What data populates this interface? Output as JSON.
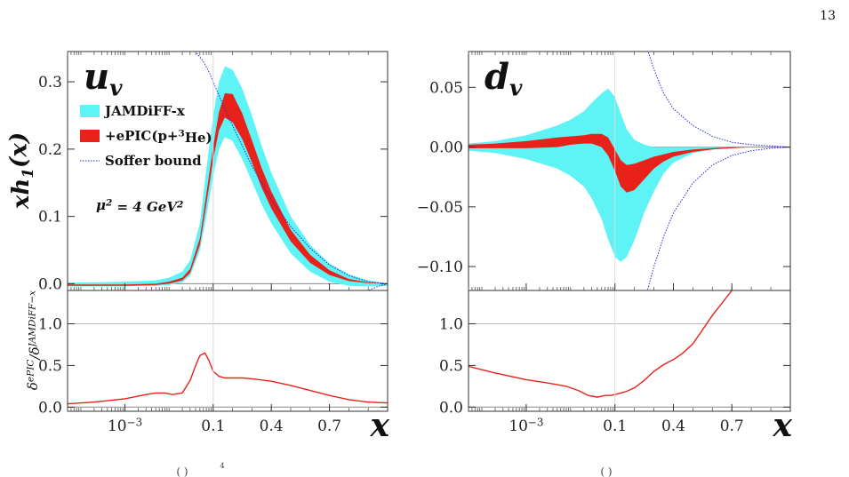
{
  "page_number": "13",
  "footer_fragments": [
    "( )",
    "4",
    "( )"
  ],
  "chart_data": [
    {
      "type": "area",
      "panel": "u_v",
      "title": "u",
      "title_sub": "v",
      "ylabel": "xh",
      "ylabel_sub": "1",
      "ylabel_suffix": "(x)",
      "xlabel": "x",
      "xscale": "log-to-linear",
      "xlim": [
        5e-05,
        1.0
      ],
      "ylim": [
        -0.01,
        0.345
      ],
      "x_ticks": [
        {
          "value": 0.001,
          "label": "10",
          "exp": "−3"
        },
        {
          "value": 0.1,
          "label": "0.1"
        },
        {
          "value": 0.4,
          "label": "0.4"
        },
        {
          "value": 0.7,
          "label": "0.7"
        }
      ],
      "y_ticks": [
        {
          "value": 0.0,
          "label": "0.0"
        },
        {
          "value": 0.1,
          "label": "0.1"
        },
        {
          "value": 0.2,
          "label": "0.2"
        },
        {
          "value": 0.3,
          "label": "0.3"
        }
      ],
      "legend": {
        "placement": "top-left",
        "items": [
          {
            "label": "JAMDiFF-x",
            "color": "#5ef3f5",
            "kind": "band"
          },
          {
            "label": "+ePIC(p+",
            "sup": "3",
            "label_tail": "He)",
            "color": "#e8221b",
            "kind": "band"
          },
          {
            "label": "Soffer bound",
            "color": "#2a2ad8",
            "kind": "dotted"
          }
        ]
      },
      "scale_annotation": {
        "lhs": "μ",
        "lhs_sup": "2",
        "mid": " = 4 GeV",
        "sup": "2"
      },
      "x": [
        5e-05,
        0.0002,
        0.001,
        0.005,
        0.01,
        0.02,
        0.03,
        0.05,
        0.07,
        0.1,
        0.13,
        0.16,
        0.2,
        0.25,
        0.3,
        0.35,
        0.4,
        0.5,
        0.6,
        0.7,
        0.8,
        0.9,
        1.0
      ],
      "series": [
        {
          "name": "JAMDiFF-x",
          "upper": [
            0.002,
            0.002,
            0.003,
            0.005,
            0.009,
            0.018,
            0.035,
            0.09,
            0.17,
            0.25,
            0.3,
            0.323,
            0.318,
            0.29,
            0.25,
            0.205,
            0.165,
            0.1,
            0.058,
            0.03,
            0.014,
            0.005,
            0.0
          ],
          "lower": [
            -0.004,
            -0.004,
            -0.004,
            -0.003,
            -0.002,
            0.002,
            0.012,
            0.05,
            0.1,
            0.16,
            0.2,
            0.218,
            0.212,
            0.185,
            0.152,
            0.118,
            0.09,
            0.045,
            0.018,
            0.003,
            -0.003,
            -0.004,
            -0.003
          ]
        },
        {
          "name": "+ePIC(p+3He)",
          "upper": [
            -0.001,
            -0.001,
            -0.001,
            0.0,
            0.003,
            0.009,
            0.022,
            0.068,
            0.133,
            0.204,
            0.255,
            0.283,
            0.282,
            0.253,
            0.213,
            0.172,
            0.137,
            0.08,
            0.043,
            0.02,
            0.007,
            0.002,
            0.0
          ],
          "lower": [
            -0.003,
            -0.003,
            -0.003,
            -0.002,
            0.0,
            0.005,
            0.016,
            0.058,
            0.118,
            0.185,
            0.228,
            0.247,
            0.24,
            0.215,
            0.18,
            0.143,
            0.112,
            0.063,
            0.031,
            0.013,
            0.004,
            0.001,
            0.0
          ]
        }
      ],
      "soffer_upper": {
        "x": [
          0.02,
          0.04,
          0.06,
          0.08,
          0.1,
          0.13,
          0.16,
          0.2,
          0.25,
          0.3,
          0.4,
          0.5,
          0.6,
          0.7,
          0.8,
          0.9,
          1.0
        ],
        "y": [
          0.36,
          0.345,
          0.33,
          0.315,
          0.3,
          0.28,
          0.26,
          0.235,
          0.205,
          0.175,
          0.125,
          0.085,
          0.053,
          0.028,
          0.012,
          0.003,
          0.0
        ]
      },
      "soffer_lower": {
        "x": [
          0.8,
          0.85,
          0.9,
          0.95,
          1.0
        ],
        "y": [
          -0.02,
          -0.015,
          -0.01,
          -0.004,
          0.0
        ]
      },
      "ratio": {
        "ylabel": "δ",
        "ylabel_sup1": "ePIC",
        "ylabel_mid": "/δ",
        "ylabel_sup2": "JAMDiFF−x",
        "ylim": [
          -0.05,
          1.4
        ],
        "y_ticks": [
          {
            "value": 0.0,
            "label": "0.0"
          },
          {
            "value": 0.5,
            "label": "0.5"
          },
          {
            "value": 1.0,
            "label": "1.0"
          }
        ],
        "x": [
          5e-05,
          0.0002,
          0.001,
          0.003,
          0.005,
          0.008,
          0.012,
          0.02,
          0.03,
          0.04,
          0.05,
          0.065,
          0.08,
          0.1,
          0.13,
          0.16,
          0.2,
          0.25,
          0.3,
          0.4,
          0.5,
          0.6,
          0.7,
          0.8,
          0.9,
          1.0
        ],
        "values": [
          0.04,
          0.06,
          0.1,
          0.15,
          0.17,
          0.17,
          0.15,
          0.17,
          0.32,
          0.5,
          0.62,
          0.65,
          0.56,
          0.43,
          0.37,
          0.35,
          0.35,
          0.35,
          0.34,
          0.31,
          0.26,
          0.2,
          0.14,
          0.09,
          0.06,
          0.05
        ]
      },
      "colors": {
        "outer": "#5ef3f5",
        "inner": "#e8221b",
        "soffer": "#2a2ad8",
        "ratio": "#e8221b"
      }
    },
    {
      "type": "area",
      "panel": "d_v",
      "title": "d",
      "title_sub": "v",
      "xlabel": "x",
      "xscale": "log-to-linear",
      "xlim": [
        5e-05,
        1.0
      ],
      "ylim": [
        -0.12,
        0.08
      ],
      "x_ticks": [
        {
          "value": 0.001,
          "label": "10",
          "exp": "−3"
        },
        {
          "value": 0.1,
          "label": "0.1"
        },
        {
          "value": 0.4,
          "label": "0.4"
        },
        {
          "value": 0.7,
          "label": "0.7"
        }
      ],
      "y_ticks": [
        {
          "value": -0.1,
          "label": "−0.10"
        },
        {
          "value": -0.05,
          "label": "−0.05"
        },
        {
          "value": 0.0,
          "label": "0.00"
        },
        {
          "value": 0.05,
          "label": "0.05"
        }
      ],
      "x": [
        5e-05,
        0.0002,
        0.001,
        0.005,
        0.01,
        0.02,
        0.03,
        0.05,
        0.07,
        0.1,
        0.13,
        0.16,
        0.2,
        0.25,
        0.3,
        0.35,
        0.4,
        0.5,
        0.6,
        0.7,
        0.8,
        0.9,
        1.0
      ],
      "series": [
        {
          "name": "JAMDiFF-x",
          "upper": [
            0.003,
            0.005,
            0.01,
            0.018,
            0.023,
            0.03,
            0.037,
            0.045,
            0.049,
            0.042,
            0.028,
            0.015,
            0.006,
            0.002,
            0.0,
            0.0,
            0.0,
            0.0,
            0.0,
            0.0,
            0.0,
            0.0,
            0.0
          ],
          "lower": [
            -0.003,
            -0.005,
            -0.01,
            -0.018,
            -0.024,
            -0.033,
            -0.043,
            -0.06,
            -0.077,
            -0.092,
            -0.096,
            -0.092,
            -0.078,
            -0.055,
            -0.037,
            -0.022,
            -0.013,
            -0.005,
            -0.002,
            -0.001,
            0.0,
            0.0,
            0.0
          ]
        },
        {
          "name": "+ePIC(p+3He)",
          "upper": [
            0.002,
            0.003,
            0.005,
            0.008,
            0.009,
            0.01,
            0.011,
            0.011,
            0.008,
            -0.002,
            -0.011,
            -0.015,
            -0.014,
            -0.011,
            -0.008,
            -0.006,
            -0.004,
            -0.002,
            -0.001,
            0.0,
            0.0,
            0.0,
            0.0
          ]
        },
        {
          "name": "+ePIC(p+3He) lower",
          "lower": [
            -0.001,
            -0.001,
            -0.001,
            0.0,
            0.002,
            0.003,
            0.003,
            0.0,
            -0.007,
            -0.02,
            -0.033,
            -0.038,
            -0.036,
            -0.027,
            -0.018,
            -0.012,
            -0.008,
            -0.004,
            -0.002,
            -0.001,
            0.0,
            0.0,
            0.0
          ]
        }
      ],
      "soffer_upper": {
        "x": [
          0.25,
          0.3,
          0.35,
          0.4,
          0.5,
          0.6,
          0.7,
          0.8,
          0.9,
          1.0
        ],
        "y": [
          0.09,
          0.065,
          0.045,
          0.032,
          0.018,
          0.009,
          0.004,
          0.002,
          0.001,
          0.0
        ]
      },
      "soffer_lower": {
        "x": [
          0.25,
          0.3,
          0.35,
          0.4,
          0.5,
          0.6,
          0.7,
          0.8,
          0.9,
          1.0
        ],
        "y": [
          -0.13,
          -0.1,
          -0.075,
          -0.055,
          -0.03,
          -0.015,
          -0.007,
          -0.003,
          -0.001,
          0.0
        ]
      },
      "ratio": {
        "ylim": [
          -0.05,
          1.4
        ],
        "y_ticks": [
          {
            "value": 0.0,
            "label": "0.0"
          },
          {
            "value": 0.5,
            "label": "0.5"
          },
          {
            "value": 1.0,
            "label": "1.0"
          }
        ],
        "x": [
          5e-05,
          0.0002,
          0.001,
          0.003,
          0.008,
          0.015,
          0.025,
          0.04,
          0.06,
          0.08,
          0.1,
          0.13,
          0.16,
          0.2,
          0.25,
          0.3,
          0.35,
          0.4,
          0.45,
          0.5,
          0.55,
          0.6,
          0.65,
          0.7
        ],
        "values": [
          0.49,
          0.41,
          0.33,
          0.29,
          0.25,
          0.2,
          0.14,
          0.12,
          0.14,
          0.14,
          0.15,
          0.17,
          0.19,
          0.23,
          0.32,
          0.43,
          0.51,
          0.57,
          0.65,
          0.76,
          0.93,
          1.1,
          1.25,
          1.4
        ]
      },
      "colors": {
        "outer": "#5ef3f5",
        "inner": "#e8221b",
        "soffer": "#2a2ad8",
        "ratio": "#e8221b"
      }
    }
  ]
}
